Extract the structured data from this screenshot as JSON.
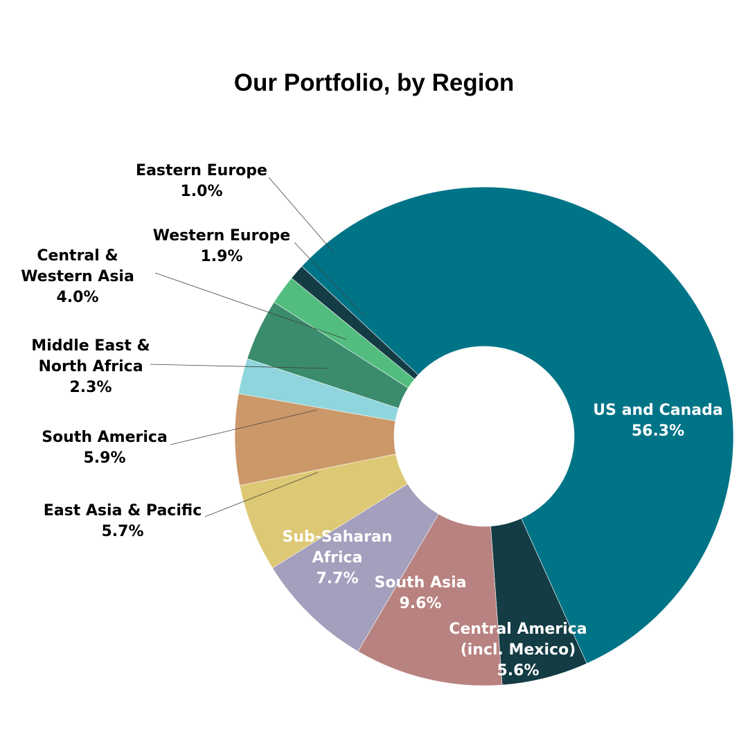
{
  "chart_data": {
    "type": "pie",
    "variant": "donut",
    "title": "Our Portfolio, by Region",
    "unit": "%",
    "start_direction": "clockwise from upper-left, US and Canada first",
    "series": [
      {
        "name": "US and Canada",
        "label_lines": [
          "US and Canada"
        ],
        "value": 56.3,
        "value_label": "56.3%",
        "color": "#007487",
        "label_placement": "inside",
        "label_color": "#ffffff"
      },
      {
        "name": "Central America (incl. Mexico)",
        "label_lines": [
          "Central America",
          "(incl. Mexico)"
        ],
        "value": 5.6,
        "value_label": "5.6%",
        "color": "#143C45",
        "label_placement": "inside",
        "label_color": "#ffffff"
      },
      {
        "name": "South Asia",
        "label_lines": [
          "South Asia"
        ],
        "value": 9.6,
        "value_label": "9.6%",
        "color": "#B88280",
        "label_placement": "inside",
        "label_color": "#ffffff"
      },
      {
        "name": "Sub-Saharan Africa",
        "label_lines": [
          "Sub-Saharan",
          "Africa"
        ],
        "value": 7.7,
        "value_label": "7.7%",
        "color": "#A39FBC",
        "label_placement": "inside",
        "label_color": "#ffffff"
      },
      {
        "name": "East Asia & Pacific",
        "label_lines": [
          "East Asia & Pacific"
        ],
        "value": 5.7,
        "value_label": "5.7%",
        "color": "#DDC875",
        "label_placement": "outside",
        "label_color": "#000000"
      },
      {
        "name": "South America",
        "label_lines": [
          "South America"
        ],
        "value": 5.9,
        "value_label": "5.9%",
        "color": "#CB986A",
        "label_placement": "outside",
        "label_color": "#000000"
      },
      {
        "name": "Middle East & North Africa",
        "label_lines": [
          "Middle East &",
          "North Africa"
        ],
        "value": 2.3,
        "value_label": "2.3%",
        "color": "#8FD5DD",
        "label_placement": "outside",
        "label_color": "#000000"
      },
      {
        "name": "Central & Western Asia",
        "label_lines": [
          "Central &",
          "Western Asia"
        ],
        "value": 4.0,
        "value_label": "4.0%",
        "color": "#3A8C6C",
        "label_placement": "outside",
        "label_color": "#000000"
      },
      {
        "name": "Western Europe",
        "label_lines": [
          "Western Europe"
        ],
        "value": 1.9,
        "value_label": "1.9%",
        "color": "#52BD7E",
        "label_placement": "outside",
        "label_color": "#000000"
      },
      {
        "name": "Eastern Europe",
        "label_lines": [
          "Eastern Europe"
        ],
        "value": 1.0,
        "value_label": "1.0%",
        "color": "#143C45",
        "label_placement": "outside",
        "label_color": "#000000"
      }
    ],
    "legend": "none",
    "grid": false
  }
}
